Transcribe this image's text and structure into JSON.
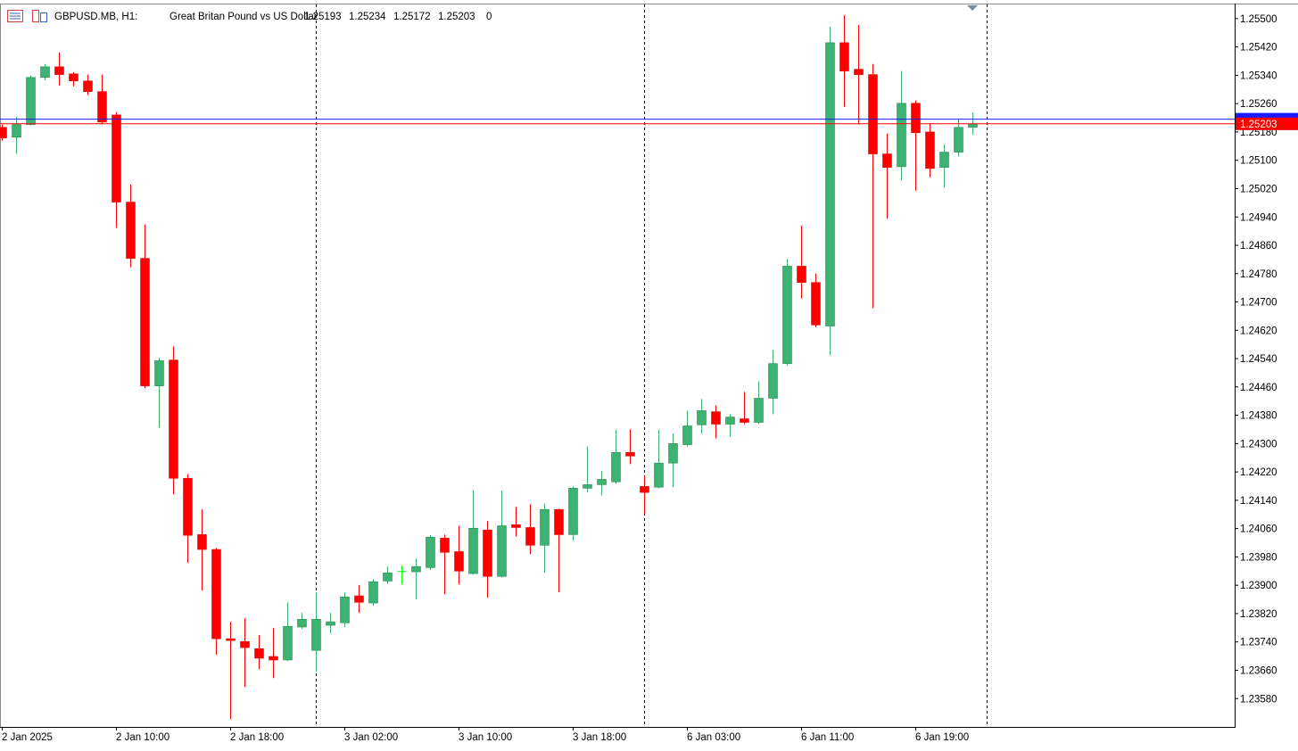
{
  "chart_data": {
    "type": "candlestick",
    "title": "GBPUSD.MB, H1:",
    "subtitle": "Great Britan Pound vs US Dollar",
    "spread": 0,
    "categories": [
      "2 Jan 2025",
      null,
      null,
      null,
      null,
      null,
      null,
      null,
      "2 Jan 10:00",
      null,
      null,
      null,
      null,
      null,
      null,
      null,
      "2 Jan 18:00",
      null,
      null,
      null,
      null,
      null,
      null,
      null,
      "3 Jan 02:00",
      null,
      null,
      null,
      null,
      null,
      null,
      null,
      "3 Jan 10:00",
      null,
      null,
      null,
      null,
      null,
      null,
      null,
      "3 Jan 18:00",
      null,
      null,
      null,
      null,
      null,
      null,
      null,
      "6 Jan 03:00",
      null,
      null,
      null,
      null,
      null,
      null,
      null,
      "6 Jan 11:00",
      null,
      null,
      null,
      null,
      null,
      null,
      null,
      "6 Jan 19:00",
      null,
      null,
      null,
      null
    ],
    "open": [
      1.25193,
      1.25165,
      1.25201,
      1.25334,
      1.25364,
      1.25344,
      1.25324,
      1.25294,
      1.25228,
      1.24982,
      1.24823,
      1.24463,
      1.24536,
      1.24202,
      1.24043,
      1.24001,
      1.23749,
      1.23741,
      1.23721,
      1.23699,
      1.23689,
      1.23782,
      1.23716,
      1.23787,
      1.23794,
      1.2387,
      1.2385,
      1.23912,
      1.23939,
      1.23938,
      1.2395,
      1.24033,
      1.23995,
      1.23933,
      1.24056,
      1.23925,
      1.24071,
      1.24063,
      1.24013,
      1.24114,
      1.24043,
      1.24174,
      1.24184,
      1.24192,
      1.24275,
      1.24179,
      1.24177,
      1.24245,
      1.24297,
      1.24353,
      1.2439,
      1.24355,
      1.2437,
      1.2436,
      1.24428,
      1.24526,
      1.24801,
      1.24755,
      1.24632,
      1.25432,
      1.25357,
      1.25342,
      1.25118,
      1.25082,
      1.25261,
      1.2518,
      1.2508,
      1.25123,
      1.25193
    ],
    "high": [
      1.25201,
      1.25223,
      1.25339,
      1.25372,
      1.25404,
      1.25349,
      1.25342,
      1.25342,
      1.25236,
      1.25032,
      1.24919,
      1.24541,
      1.24574,
      1.24214,
      1.24114,
      1.24006,
      1.23797,
      1.23807,
      1.23759,
      1.23779,
      1.23852,
      1.23822,
      1.2388,
      1.23822,
      1.2388,
      1.239,
      1.23917,
      1.23953,
      1.23955,
      1.23975,
      1.24041,
      1.24043,
      1.24068,
      1.24169,
      1.24081,
      1.24167,
      1.24121,
      1.24129,
      1.24131,
      1.24116,
      1.24179,
      1.24292,
      1.24222,
      1.2434,
      1.2434,
      1.24209,
      1.2434,
      1.24328,
      1.24393,
      1.24426,
      1.24408,
      1.24383,
      1.24446,
      1.24476,
      1.24564,
      1.24821,
      1.24916,
      1.2478,
      1.25477,
      1.2551,
      1.25482,
      1.25372,
      1.25175,
      1.25352,
      1.25269,
      1.25203,
      1.25145,
      1.25218,
      1.25234
    ],
    "low": [
      1.25155,
      1.25118,
      1.25198,
      1.25326,
      1.25311,
      1.25309,
      1.25284,
      1.25201,
      1.24909,
      1.24798,
      1.24456,
      1.24345,
      1.24157,
      1.23963,
      1.23885,
      1.23704,
      1.23522,
      1.23613,
      1.23663,
      1.23638,
      1.23686,
      1.23777,
      1.23656,
      1.23764,
      1.23782,
      1.23822,
      1.23842,
      1.23905,
      1.23902,
      1.2386,
      1.23943,
      1.23875,
      1.23902,
      1.2393,
      1.23865,
      1.23922,
      1.24038,
      1.23988,
      1.23935,
      1.2388,
      1.24026,
      1.24162,
      1.24154,
      1.24187,
      1.24242,
      1.24101,
      1.24174,
      1.24177,
      1.24292,
      1.24328,
      1.24315,
      1.2432,
      1.24355,
      1.24355,
      1.24383,
      1.24521,
      1.2471,
      1.24629,
      1.24549,
      1.25251,
      1.25201,
      1.24682,
      1.24936,
      1.25042,
      1.25014,
      1.25052,
      1.25022,
      1.2511,
      1.25172
    ],
    "close": [
      1.25163,
      1.25201,
      1.25334,
      1.25364,
      1.25342,
      1.25324,
      1.25294,
      1.25208,
      1.24982,
      1.24823,
      1.24463,
      1.24534,
      1.24202,
      1.24041,
      1.24001,
      1.23749,
      1.23744,
      1.23724,
      1.23694,
      1.23689,
      1.23784,
      1.23804,
      1.23804,
      1.23797,
      1.23867,
      1.23852,
      1.2391,
      1.23935,
      1.23939,
      1.23953,
      1.24036,
      1.23993,
      1.2394,
      1.24061,
      1.23925,
      1.24068,
      1.24063,
      1.24013,
      1.24114,
      1.24043,
      1.24174,
      1.24184,
      1.24199,
      1.24275,
      1.24265,
      1.24162,
      1.24245,
      1.243,
      1.2435,
      1.24393,
      1.24355,
      1.24375,
      1.2436,
      1.24428,
      1.24526,
      1.24801,
      1.24755,
      1.24635,
      1.25432,
      1.25352,
      1.25342,
      1.25118,
      1.2508,
      1.25261,
      1.25178,
      1.25077,
      1.25123,
      1.25193,
      1.25203
    ],
    "up_color": "#3cb371",
    "down_color": "#ff0000",
    "doji_color": "#00ff00",
    "ask": 1.25216,
    "ask_color": "#1a1aff",
    "bid_color": "#ff0000",
    "ylim": [
      1.235,
      1.2554
    ],
    "yticks": [
      {
        "value": 1.255,
        "label": "1.25500"
      },
      {
        "value": 1.2542,
        "label": "1.25420"
      },
      {
        "value": 1.2534,
        "label": "1.25340"
      },
      {
        "value": 1.2526,
        "label": "1.25260"
      },
      {
        "value": 1.2518,
        "label": "1.25180"
      },
      {
        "value": 1.251,
        "label": "1.25100"
      },
      {
        "value": 1.2502,
        "label": "1.25020"
      },
      {
        "value": 1.2494,
        "label": "1.24940"
      },
      {
        "value": 1.2486,
        "label": "1.24860"
      },
      {
        "value": 1.2478,
        "label": "1.24780"
      },
      {
        "value": 1.247,
        "label": "1.24700"
      },
      {
        "value": 1.2462,
        "label": "1.24620"
      },
      {
        "value": 1.2454,
        "label": "1.24540"
      },
      {
        "value": 1.2446,
        "label": "1.24460"
      },
      {
        "value": 1.2438,
        "label": "1.24380"
      },
      {
        "value": 1.243,
        "label": "1.24300"
      },
      {
        "value": 1.2422,
        "label": "1.24220"
      },
      {
        "value": 1.2414,
        "label": "1.24140"
      },
      {
        "value": 1.2406,
        "label": "1.24060"
      },
      {
        "value": 1.2398,
        "label": "1.23980"
      },
      {
        "value": 1.239,
        "label": "1.23900"
      },
      {
        "value": 1.2382,
        "label": "1.23820"
      },
      {
        "value": 1.2374,
        "label": "1.23740"
      },
      {
        "value": 1.2366,
        "label": "1.23660"
      },
      {
        "value": 1.2358,
        "label": "1.23580"
      }
    ]
  }
}
